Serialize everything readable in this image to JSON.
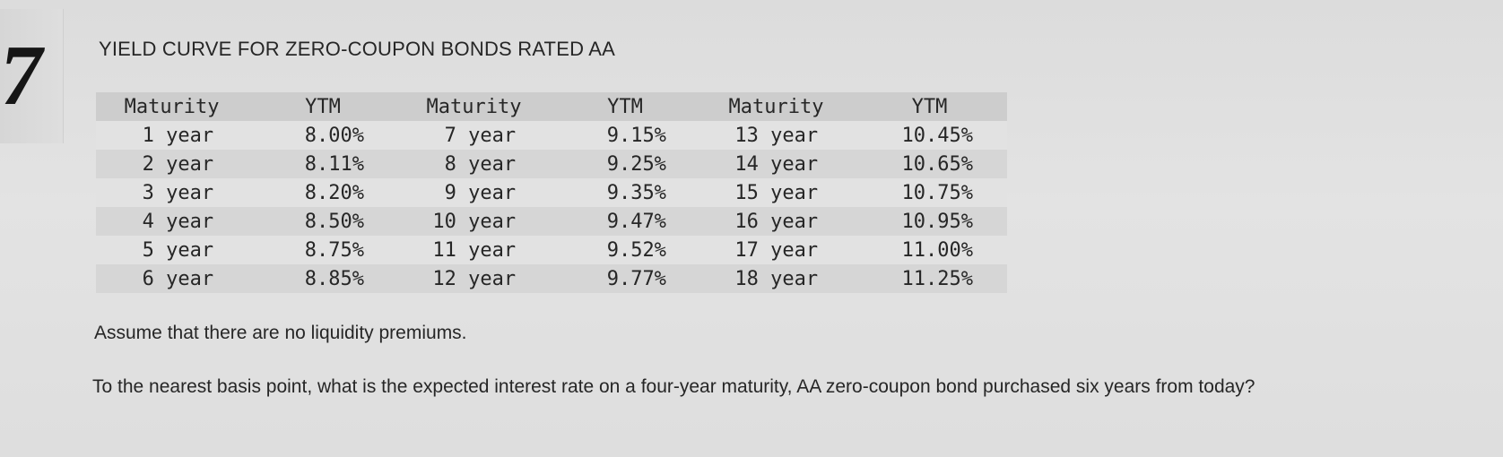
{
  "question_number": "7",
  "title": "YIELD CURVE FOR ZERO-COUPON BONDS RATED AA",
  "table": {
    "headers": [
      "Maturity",
      "YTM",
      "Maturity",
      "YTM",
      "Maturity",
      "YTM"
    ],
    "rows": [
      [
        "1 year",
        "8.00%",
        "7 year",
        "9.15%",
        "13 year",
        "10.45%"
      ],
      [
        "2 year",
        "8.11%",
        "8 year",
        "9.25%",
        "14 year",
        "10.65%"
      ],
      [
        "3 year",
        "8.20%",
        "9 year",
        "9.35%",
        "15 year",
        "10.75%"
      ],
      [
        "4 year",
        "8.50%",
        "10 year",
        "9.47%",
        "16 year",
        "10.95%"
      ],
      [
        "5 year",
        "8.75%",
        "11 year",
        "9.52%",
        "17 year",
        "11.00%"
      ],
      [
        "6 year",
        "8.85%",
        "12 year",
        "9.77%",
        "18 year",
        "11.25%"
      ]
    ]
  },
  "note": "Assume that there are no liquidity premiums.",
  "question": "To the nearest basis point, what is the expected interest rate on a four-year maturity, AA zero-coupon bond purchased six years from today?"
}
